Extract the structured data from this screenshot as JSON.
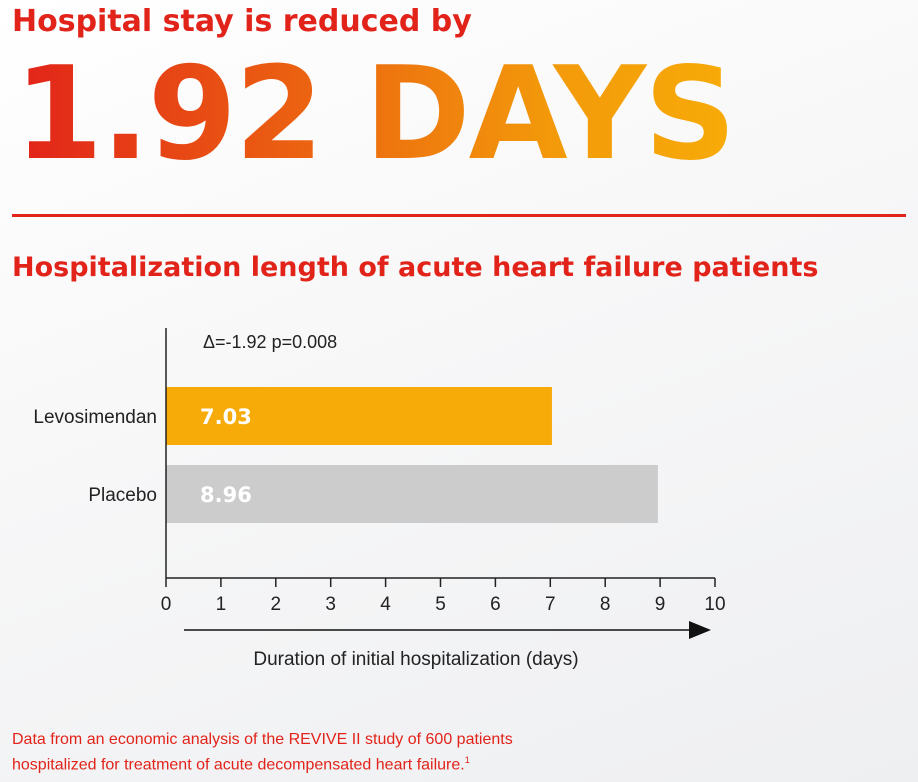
{
  "headline": "Hospital stay is reduced by",
  "big_number": "1.92 DAYS",
  "chart_title": "Hospitalization length of acute heart failure patients",
  "footnote": {
    "line1": "Data from an economic analysis of the REVIVE II study of 600 patients",
    "line2": "hospitalized for treatment of acute decompensated heart failure.",
    "ref": "1"
  },
  "colors": {
    "accent": "#e2231a",
    "levosimendan": "#f7ab08",
    "placebo": "#cccccc"
  },
  "chart_data": {
    "type": "bar",
    "orientation": "horizontal",
    "categories": [
      "Levosimendan",
      "Placebo"
    ],
    "values": [
      7.03,
      8.96
    ],
    "value_labels": [
      "7.03",
      "8.96"
    ],
    "annotation": "Δ=-1.92 p=0.008",
    "xlabel": "Duration of initial hospitalization (days)",
    "xlim": [
      0,
      10
    ],
    "xticks": [
      "0",
      "1",
      "2",
      "3",
      "4",
      "5",
      "6",
      "7",
      "8",
      "9",
      "10"
    ],
    "grid": false,
    "legend": "none"
  }
}
